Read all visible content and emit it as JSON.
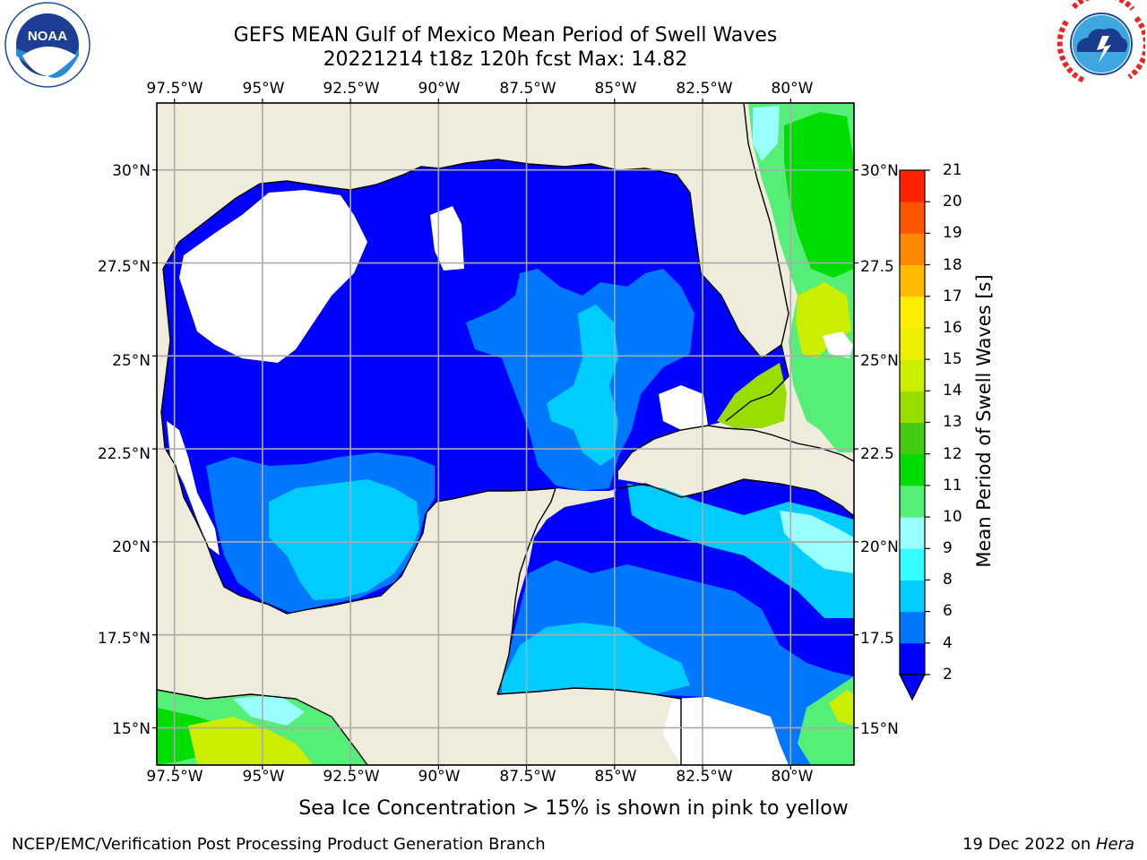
{
  "title": {
    "line1": "GEFS MEAN Gulf of Mexico Mean Period of Swell Waves",
    "line2": "20221214 t18z 120h fcst   Max: 14.82"
  },
  "logos": {
    "left": {
      "name": "noaa-logo",
      "text": "NOAA",
      "ring_text": "NATIONAL OCEANIC AND ATMOSPHERIC ADMINISTRATION · U.S. DEPARTMENT OF COMMERCE"
    },
    "right": {
      "name": "nws-logo",
      "ring_text": "NATIONAL WEATHER SERVICE"
    }
  },
  "map": {
    "lon_ticks": [
      "97.5°W",
      "95°W",
      "92.5°W",
      "90°W",
      "87.5°W",
      "85°W",
      "82.5°W",
      "80°W"
    ],
    "lat_ticks_left": [
      "30°N",
      "27.5°N",
      "25°N",
      "22.5°N",
      "20°N",
      "17.5°N",
      "15°N"
    ],
    "lat_ticks_right": [
      "30°N",
      "27.5",
      "25°N",
      "22.5",
      "20°N",
      "17.5",
      "15°N"
    ],
    "lon_range": [
      -98,
      -78.2
    ],
    "lat_range": [
      14,
      31.8
    ],
    "land_color": "#efecdc",
    "water_blank_color": "#ffffff",
    "grid": true
  },
  "colorbar": {
    "label": "Mean Period of Swell Waves [s]",
    "ticks": [
      "21",
      "20",
      "19",
      "18",
      "17",
      "16",
      "15",
      "14",
      "13",
      "12",
      "11",
      "10",
      "9",
      "8",
      "6",
      "4",
      "2"
    ],
    "levels": [
      2,
      4,
      6,
      8,
      9,
      10,
      11,
      12,
      13,
      14,
      15,
      16,
      17,
      18,
      19,
      20,
      21
    ],
    "colors": [
      "#0000ff",
      "#0077ff",
      "#00ccff",
      "#33ffff",
      "#99ffff",
      "#55ee77",
      "#00dd00",
      "#44cc11",
      "#99dd00",
      "#ccee00",
      "#eeee00",
      "#ffee00",
      "#ffbb00",
      "#ff8800",
      "#ff5500",
      "#ff2200"
    ],
    "extend": "min"
  },
  "note": "Sea Ice Concentration > 15% is shown in pink to yellow",
  "footer": {
    "left": "NCEP/EMC/Verification Post Processing Product Generation Branch",
    "right_prefix": "19 Dec 2022 on ",
    "right_machine": "Hera"
  }
}
